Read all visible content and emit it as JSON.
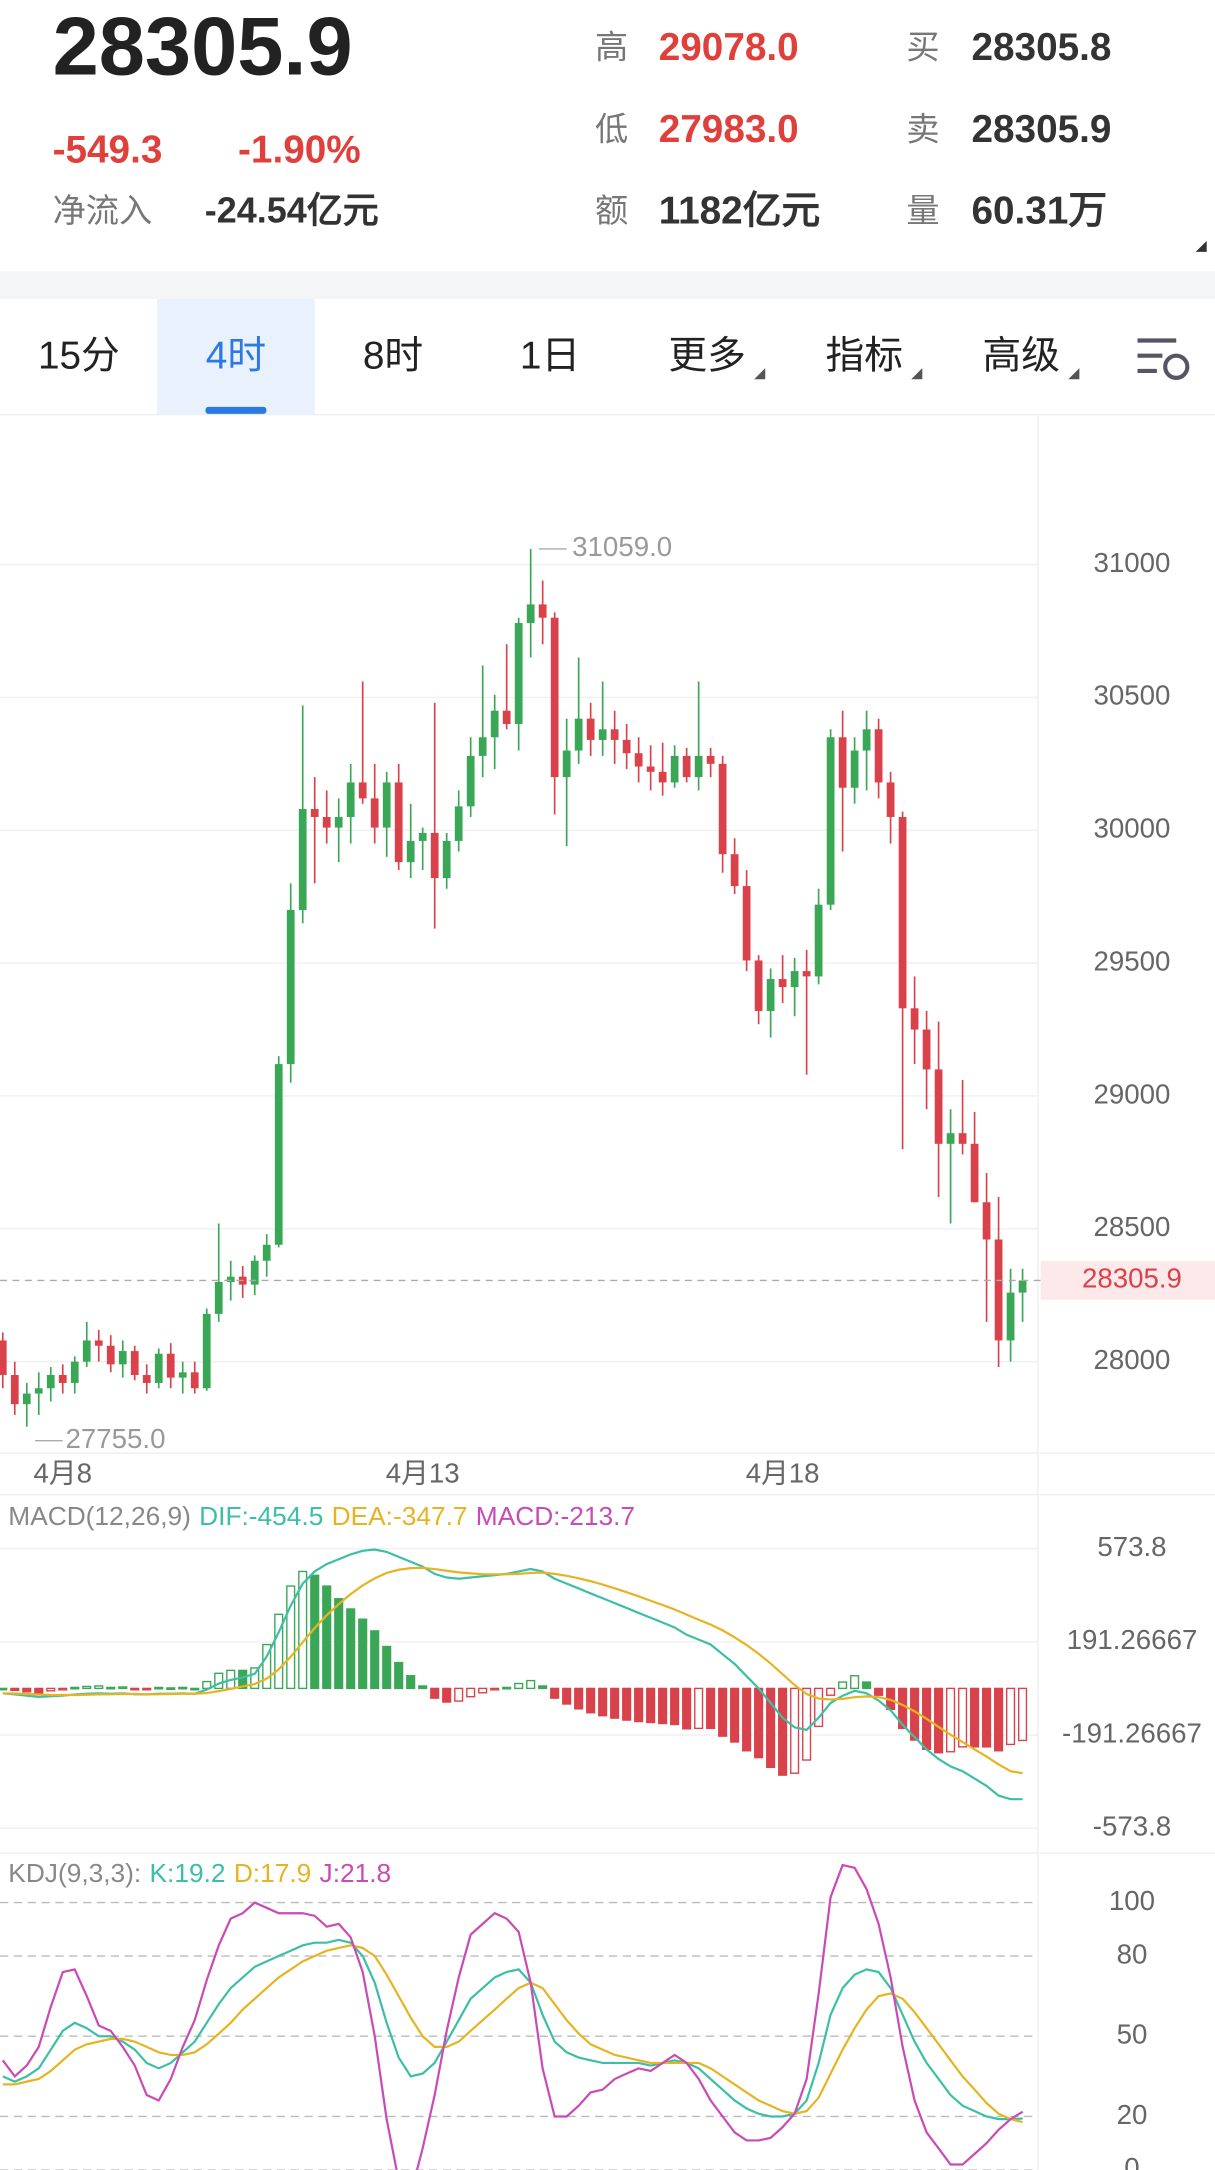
{
  "header": {
    "last": "28305.9",
    "change": "-549.3",
    "change_pct": "-1.90%",
    "inflow_label": "净流入",
    "inflow": "-24.54亿元",
    "stats": [
      {
        "label": "高",
        "value": "29078.0",
        "color": "#e0403c"
      },
      {
        "label": "低",
        "value": "27983.0",
        "color": "#e0403c"
      },
      {
        "label": "额",
        "value": "1182亿元",
        "color": "#333333"
      },
      {
        "label": "买",
        "value": "28305.8",
        "color": "#333333"
      },
      {
        "label": "卖",
        "value": "28305.9",
        "color": "#333333"
      },
      {
        "label": "量",
        "value": "60.31万",
        "color": "#333333"
      }
    ]
  },
  "tabs": {
    "items": [
      "15分",
      "4时",
      "8时",
      "1日",
      "更多",
      "指标",
      "高级"
    ],
    "active": 1
  },
  "chart_data": [
    {
      "type": "candlestick",
      "categories": [
        null,
        null,
        null,
        null,
        null,
        "4月8",
        null,
        null,
        null,
        null,
        null,
        null,
        null,
        null,
        null,
        null,
        null,
        null,
        null,
        null,
        null,
        null,
        null,
        null,
        null,
        null,
        null,
        null,
        null,
        null,
        null,
        null,
        null,
        null,
        null,
        "4月13",
        null,
        null,
        null,
        null,
        null,
        null,
        null,
        null,
        null,
        null,
        null,
        null,
        null,
        null,
        null,
        null,
        null,
        null,
        null,
        null,
        null,
        null,
        null,
        null,
        null,
        null,
        null,
        null,
        null,
        "4月18",
        null,
        null,
        null,
        null,
        null,
        null,
        null,
        null,
        null,
        null,
        null,
        null,
        null,
        null,
        null,
        null,
        null,
        null,
        null,
        null
      ],
      "open": [
        28080,
        27950,
        27840,
        27880,
        27900,
        27950,
        27920,
        28000,
        28080,
        28060,
        27990,
        28040,
        27950,
        27920,
        28030,
        27940,
        27960,
        27900,
        28180,
        28300,
        28320,
        28290,
        28380,
        28440,
        29120,
        29700,
        30080,
        30050,
        30010,
        30050,
        30180,
        30120,
        30010,
        30180,
        29880,
        29960,
        29990,
        29820,
        29960,
        30090,
        30280,
        30350,
        30450,
        30400,
        30780,
        30850,
        30800,
        30200,
        30300,
        30420,
        30340,
        30380,
        30340,
        30290,
        30240,
        30220,
        30180,
        30280,
        30200,
        30280,
        30250,
        29910,
        29790,
        29510,
        29320,
        29440,
        29410,
        29470,
        29450,
        29720,
        30350,
        30160,
        30300,
        30380,
        30180,
        30050,
        29330,
        29250,
        29100,
        28820,
        28860,
        28820,
        28600,
        28460,
        28080,
        28260
      ],
      "high": [
        28110,
        28000,
        27920,
        27960,
        27980,
        27990,
        28020,
        28150,
        28120,
        28100,
        28080,
        28060,
        27990,
        28050,
        28070,
        28000,
        28000,
        28200,
        28520,
        28380,
        28360,
        28400,
        28480,
        29150,
        29800,
        30470,
        30200,
        30150,
        30120,
        30250,
        30560,
        30250,
        30220,
        30250,
        30100,
        30010,
        30480,
        29990,
        30150,
        30350,
        30620,
        30510,
        30700,
        30800,
        31059,
        30940,
        30820,
        30420,
        30650,
        30480,
        30560,
        30450,
        30400,
        30350,
        30320,
        30330,
        30320,
        30310,
        30560,
        30310,
        30280,
        29970,
        29850,
        29530,
        29480,
        29530,
        29520,
        29550,
        29780,
        30380,
        30450,
        30350,
        30450,
        30420,
        30220,
        30070,
        29450,
        29320,
        29280,
        28950,
        29060,
        28940,
        28710,
        28620,
        28350,
        28350
      ],
      "low": [
        27900,
        27800,
        27755,
        27800,
        27850,
        27880,
        27880,
        27980,
        28000,
        27960,
        27940,
        27930,
        27880,
        27900,
        27900,
        27880,
        27880,
        27890,
        28150,
        28230,
        28240,
        28250,
        28320,
        28430,
        29050,
        29650,
        29800,
        29950,
        29880,
        29950,
        30100,
        29950,
        29900,
        29850,
        29820,
        29850,
        29630,
        29780,
        29920,
        30050,
        30200,
        30230,
        30380,
        30300,
        30650,
        30700,
        30060,
        29940,
        30250,
        30280,
        30280,
        30250,
        30230,
        30180,
        30150,
        30130,
        30160,
        30180,
        30150,
        30200,
        29840,
        29760,
        29470,
        29270,
        29220,
        29350,
        29300,
        29080,
        29420,
        29700,
        29920,
        30100,
        30150,
        30120,
        29950,
        28800,
        29120,
        28950,
        28620,
        28520,
        28780,
        28600,
        28150,
        27980,
        28000,
        28150
      ],
      "close": [
        27950,
        27840,
        27880,
        27900,
        27950,
        27920,
        28000,
        28080,
        28060,
        27990,
        28040,
        27950,
        27920,
        28030,
        27940,
        27960,
        27900,
        28180,
        28300,
        28320,
        28290,
        28380,
        28440,
        29120,
        29700,
        30080,
        30050,
        30010,
        30050,
        30180,
        30120,
        30010,
        30180,
        29880,
        29960,
        29990,
        29820,
        29960,
        30090,
        30280,
        30350,
        30450,
        30400,
        30780,
        30850,
        30800,
        30200,
        30300,
        30420,
        30340,
        30380,
        30340,
        30290,
        30240,
        30220,
        30180,
        30280,
        30200,
        30280,
        30250,
        29910,
        29790,
        29510,
        29320,
        29440,
        29410,
        29470,
        29450,
        29720,
        30350,
        30160,
        30300,
        30380,
        30180,
        30050,
        29330,
        29250,
        29100,
        28820,
        28860,
        28820,
        28600,
        28460,
        28080,
        28260,
        28305.9
      ],
      "up_color": "#3aa757",
      "down_color": "#d9424a",
      "ylim": [
        27656,
        31562
      ],
      "yticks": [
        31000,
        30500,
        30000,
        29500,
        29000,
        28500,
        28000
      ],
      "grid": true,
      "last_price": 28305.9,
      "max_label": {
        "value": 31059,
        "label": "31059.0"
      },
      "min_label": {
        "value": 27755,
        "label": "27755.0"
      }
    },
    {
      "type": "macd",
      "title": "MACD(12,26,9)",
      "series": [
        {
          "name": "DIF:-454.5",
          "color": "#3cbfa6",
          "values": [
            -20,
            -25,
            -30,
            -35,
            -32,
            -30,
            -25,
            -22,
            -20,
            -22,
            -20,
            -24,
            -25,
            -22,
            -22,
            -20,
            -22,
            -5,
            20,
            35,
            45,
            60,
            130,
            230,
            340,
            430,
            480,
            510,
            530,
            550,
            565,
            570,
            560,
            540,
            520,
            500,
            470,
            455,
            450,
            455,
            460,
            465,
            470,
            480,
            490,
            480,
            450,
            430,
            410,
            390,
            370,
            350,
            330,
            310,
            290,
            270,
            250,
            220,
            200,
            180,
            140,
            100,
            50,
            0,
            -60,
            -120,
            -160,
            -170,
            -120,
            -60,
            -30,
            -10,
            -20,
            -50,
            -90,
            -150,
            -200,
            -250,
            -290,
            -320,
            -340,
            -370,
            -400,
            -440,
            -455,
            -454.5
          ]
        },
        {
          "name": "DEA:-347.7",
          "color": "#e6b422",
          "values": [
            -20,
            -21,
            -23,
            -25,
            -27,
            -27,
            -27,
            -26,
            -25,
            -24,
            -23,
            -23,
            -24,
            -24,
            -23,
            -22,
            -22,
            -19,
            -11,
            -2,
            8,
            18,
            40,
            78,
            130,
            190,
            248,
            300,
            346,
            387,
            423,
            452,
            474,
            487,
            494,
            495,
            490,
            483,
            476,
            472,
            469,
            468,
            468,
            470,
            474,
            475,
            470,
            462,
            452,
            440,
            426,
            411,
            395,
            378,
            360,
            342,
            324,
            303,
            282,
            262,
            238,
            210,
            178,
            142,
            102,
            58,
            14,
            -23,
            -42,
            -46,
            -43,
            -36,
            -33,
            -36,
            -47,
            -68,
            -94,
            -125,
            -158,
            -190,
            -220,
            -250,
            -280,
            -312,
            -340,
            -347.7
          ]
        },
        {
          "name": "MACD:-213.7",
          "kind": "histogram",
          "color": "#c94bb5",
          "up_color": "#3aa757",
          "down_color": "#d9424a",
          "values": [
            0,
            -8,
            -14,
            -20,
            -10,
            -6,
            4,
            8,
            10,
            4,
            6,
            -2,
            -2,
            4,
            2,
            4,
            0,
            28,
            62,
            74,
            74,
            84,
            180,
            304,
            420,
            480,
            464,
            420,
            368,
            326,
            284,
            236,
            172,
            106,
            52,
            10,
            -40,
            -56,
            -52,
            -34,
            -18,
            -6,
            4,
            20,
            32,
            10,
            -40,
            -64,
            -84,
            -100,
            -112,
            -122,
            -130,
            -136,
            -140,
            -144,
            -148,
            -166,
            -164,
            -164,
            -196,
            -220,
            -256,
            -284,
            -324,
            -356,
            -348,
            -294,
            -156,
            -28,
            26,
            52,
            26,
            -28,
            -86,
            -164,
            -212,
            -250,
            -264,
            -260,
            -240,
            -240,
            -240,
            -256,
            -230,
            -213.7
          ]
        }
      ],
      "ylim": [
        -670,
        784
      ],
      "yticks": [
        573.8,
        191.26667,
        -191.26667,
        -573.8
      ],
      "grid": true
    },
    {
      "type": "kdj",
      "title": "KDJ(9,3,3):",
      "series": [
        {
          "name": "K:19.2",
          "color": "#3cbfa6",
          "values": [
            35,
            33,
            35,
            38,
            45,
            52,
            55,
            53,
            50,
            50,
            48,
            45,
            40,
            38,
            40,
            44,
            48,
            55,
            62,
            68,
            72,
            76,
            78,
            80,
            82,
            84,
            85,
            85,
            86,
            85,
            80,
            70,
            55,
            42,
            35,
            36,
            40,
            48,
            56,
            64,
            68,
            72,
            74,
            75,
            70,
            58,
            48,
            44,
            42,
            41,
            40,
            40,
            40,
            40,
            39,
            40,
            41,
            40,
            38,
            34,
            30,
            26,
            23,
            21,
            20,
            20,
            21,
            26,
            40,
            58,
            68,
            73,
            75,
            74,
            68,
            58,
            48,
            40,
            34,
            28,
            24,
            22,
            20,
            19,
            19,
            19.2
          ]
        },
        {
          "name": "D:17.9",
          "color": "#e6b422",
          "values": [
            32,
            32,
            33,
            34,
            37,
            41,
            45,
            47,
            48,
            49,
            49,
            48,
            46,
            44,
            43,
            43,
            44,
            47,
            51,
            55,
            60,
            64,
            68,
            72,
            75,
            78,
            80,
            82,
            83,
            84,
            83,
            80,
            73,
            65,
            57,
            50,
            46,
            46,
            48,
            52,
            56,
            60,
            64,
            68,
            70,
            68,
            62,
            56,
            51,
            47,
            45,
            43,
            42,
            41,
            40,
            40,
            40,
            40,
            40,
            38,
            35,
            32,
            29,
            26,
            24,
            22,
            21,
            22,
            27,
            36,
            45,
            53,
            60,
            65,
            66,
            64,
            59,
            53,
            47,
            41,
            35,
            30,
            25,
            21,
            19,
            17.9
          ]
        },
        {
          "name": "J:21.8",
          "color": "#c94bb5",
          "values": [
            41,
            35,
            39,
            46,
            61,
            74,
            75,
            65,
            54,
            52,
            46,
            39,
            28,
            26,
            34,
            46,
            56,
            71,
            84,
            94,
            96,
            100,
            98,
            96,
            96,
            96,
            95,
            91,
            92,
            87,
            74,
            50,
            19,
            -4,
            -9,
            8,
            28,
            52,
            72,
            88,
            92,
            96,
            94,
            89,
            70,
            38,
            20,
            20,
            24,
            29,
            30,
            34,
            36,
            38,
            37,
            40,
            43,
            40,
            34,
            26,
            20,
            14,
            11,
            11,
            12,
            16,
            21,
            34,
            66,
            102,
            114,
            113,
            105,
            92,
            72,
            46,
            26,
            14,
            8,
            2,
            2,
            6,
            10,
            15,
            19,
            21.8
          ]
        }
      ],
      "ylim": [
        0,
        118
      ],
      "yticks": [
        100,
        80,
        50,
        20,
        0
      ],
      "grid": true
    }
  ]
}
